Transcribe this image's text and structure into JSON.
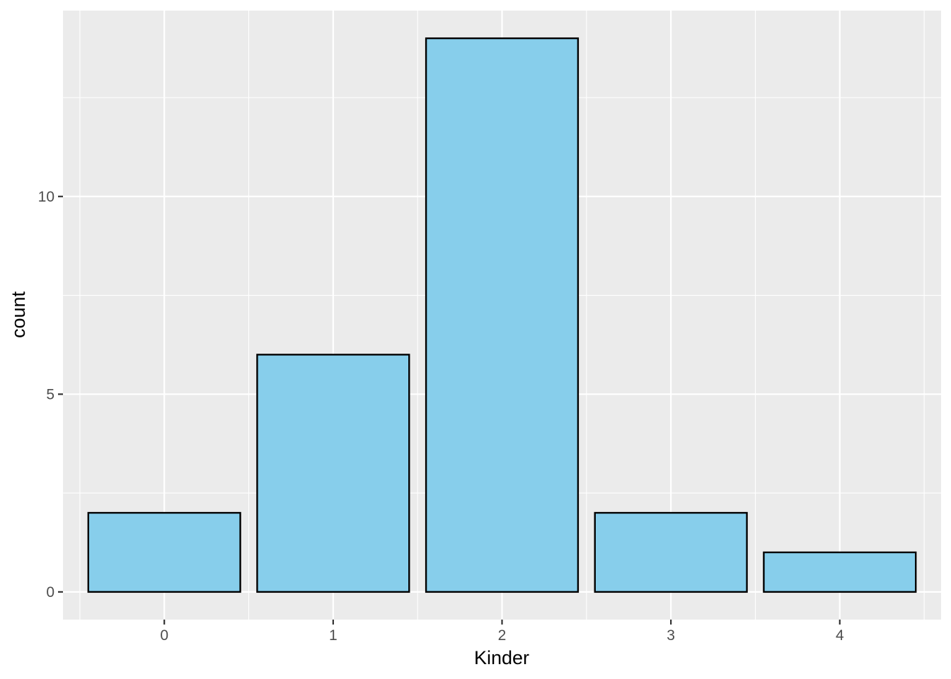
{
  "chart_data": {
    "type": "bar",
    "categories": [
      "0",
      "1",
      "2",
      "3",
      "4"
    ],
    "values": [
      2,
      6,
      14,
      2,
      1
    ],
    "xlabel": "Kinder",
    "ylabel": "count",
    "ylim": [
      -0.7,
      14.7
    ],
    "y_ticks": [
      0,
      5,
      10
    ],
    "y_tick_labels": [
      "0",
      "5",
      "10"
    ],
    "y_minor_ticks": [
      2.5,
      7.5,
      12.5
    ],
    "grid": true,
    "legend": "none",
    "colors": {
      "panel_background": "#ebebeb",
      "grid_line": "#ffffff",
      "bar_fill": "#87ceeb",
      "bar_stroke": "#000000",
      "tick_mark": "#333333"
    }
  }
}
